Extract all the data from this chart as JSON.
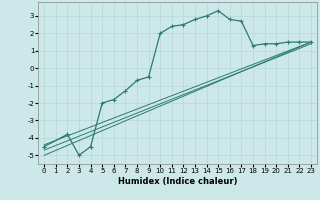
{
  "bg_color": "#cce8e8",
  "grid_color": "#b8d8d8",
  "line_color": "#2d7a6e",
  "marker_color": "#2d7a6e",
  "xlabel": "Humidex (Indice chaleur)",
  "xlim": [
    -0.5,
    23.5
  ],
  "ylim": [
    -5.5,
    3.8
  ],
  "yticks": [
    -5,
    -4,
    -3,
    -2,
    -1,
    0,
    1,
    2,
    3
  ],
  "xticks": [
    0,
    1,
    2,
    3,
    4,
    5,
    6,
    7,
    8,
    9,
    10,
    11,
    12,
    13,
    14,
    15,
    16,
    17,
    18,
    19,
    20,
    21,
    22,
    23
  ],
  "curve_x": [
    0,
    2,
    3,
    4,
    5,
    6,
    7,
    8,
    9,
    10,
    11,
    12,
    13,
    14,
    15,
    16,
    17,
    18,
    19,
    20,
    21,
    22,
    23
  ],
  "curve_y": [
    -4.5,
    -3.8,
    -5.0,
    -4.5,
    -2.0,
    -1.8,
    -1.3,
    -0.7,
    -0.5,
    2.0,
    2.4,
    2.5,
    2.8,
    3.0,
    3.3,
    2.8,
    2.7,
    1.3,
    1.4,
    1.4,
    1.5,
    1.5,
    1.5
  ],
  "line1_x": [
    0,
    23
  ],
  "line1_y": [
    -5.0,
    1.5
  ],
  "line2_x": [
    0,
    23
  ],
  "line2_y": [
    -4.7,
    1.4
  ],
  "line3_x": [
    0,
    23
  ],
  "line3_y": [
    -4.4,
    1.5
  ],
  "axis_fontsize": 5.5,
  "tick_fontsize": 5.0,
  "xlabel_fontsize": 6.0
}
